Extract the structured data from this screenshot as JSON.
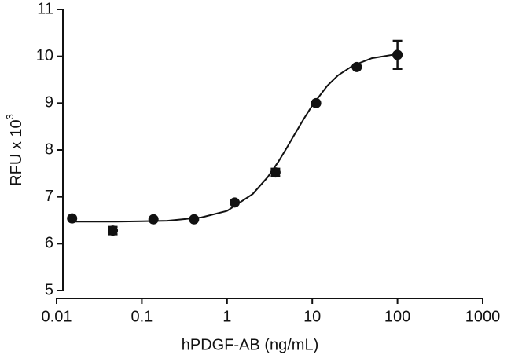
{
  "chart_data": {
    "type": "scatter",
    "x_label": "hPDGF-AB (ng/mL)",
    "y_label": "RFU x 10",
    "y_label_superscript": "3",
    "x_scale": "log",
    "xlim": [
      0.01,
      1000
    ],
    "xticks": [
      0.01,
      0.1,
      1,
      10,
      100,
      1000
    ],
    "ylim": [
      5,
      11
    ],
    "yticks": [
      5,
      6,
      7,
      8,
      9,
      10,
      11
    ],
    "grid": false,
    "series": [
      {
        "kind": "points",
        "color": "#111111",
        "x": [
          0.0152,
          0.0457,
          0.137,
          0.41,
          1.23,
          3.7,
          11.1,
          33.3,
          100
        ],
        "values": [
          6.54,
          6.28,
          6.52,
          6.52,
          6.88,
          7.52,
          9.0,
          9.77,
          10.03
        ],
        "errors": [
          null,
          0.08,
          null,
          null,
          null,
          0.08,
          null,
          null,
          0.3
        ]
      },
      {
        "kind": "fit",
        "color": "#111111",
        "x": [
          0.0152,
          0.05,
          0.1,
          0.2,
          0.5,
          1,
          2,
          3,
          4,
          5,
          6,
          8,
          10,
          15,
          20,
          30,
          50,
          100
        ],
        "values": [
          6.47,
          6.47,
          6.48,
          6.49,
          6.56,
          6.7,
          7.06,
          7.42,
          7.75,
          8.04,
          8.29,
          8.67,
          8.95,
          9.37,
          9.59,
          9.8,
          9.96,
          10.05
        ]
      }
    ]
  }
}
